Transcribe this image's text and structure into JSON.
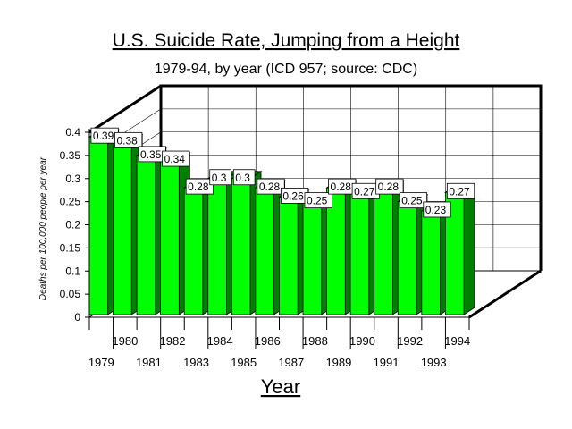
{
  "chart_data": {
    "type": "bar",
    "title": "U.S. Suicide Rate, Jumping from a Height",
    "subtitle": "1979-94, by year (ICD 957; source: CDC)",
    "xlabel": "Year",
    "ylabel": "Deaths per 100,000 people per year",
    "categories": [
      "1979",
      "1980",
      "1981",
      "1982",
      "1983",
      "1984",
      "1985",
      "1986",
      "1987",
      "1988",
      "1989",
      "1990",
      "1991",
      "1992",
      "1993",
      "1994"
    ],
    "values": [
      0.39,
      0.38,
      0.35,
      0.34,
      0.28,
      0.3,
      0.3,
      0.28,
      0.26,
      0.25,
      0.28,
      0.27,
      0.28,
      0.25,
      0.23,
      0.27
    ],
    "value_labels": [
      "0.39",
      "0.38",
      "0.35",
      "0.34",
      "0.28",
      "0.3",
      "0.3",
      "0.28",
      "0.26",
      "0.25",
      "0.28",
      "0.27",
      "0.28",
      "0.25",
      "0.23",
      "0.27"
    ],
    "yticks": [
      "0",
      "0.05",
      "0.1",
      "0.15",
      "0.2",
      "0.25",
      "0.3",
      "0.35",
      "0.4"
    ],
    "ylim": [
      0,
      0.4
    ],
    "grid": true,
    "legend": "none",
    "bar_front_color": "#00ff00",
    "bar_side_color": "#008000",
    "grid_color": "#000000"
  }
}
